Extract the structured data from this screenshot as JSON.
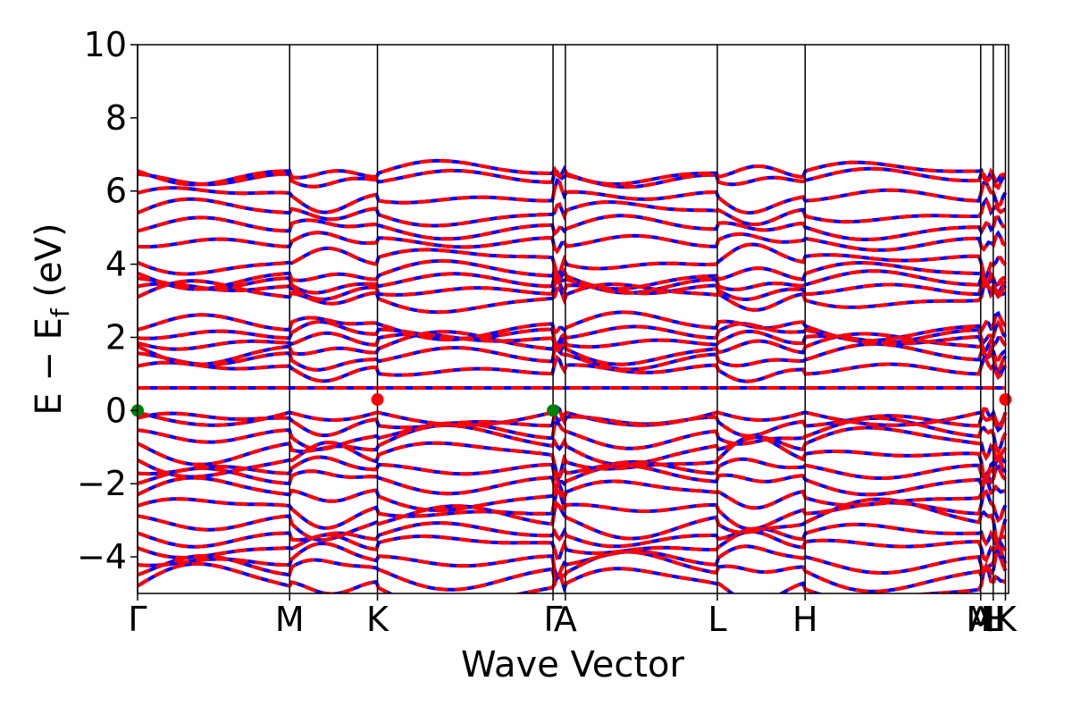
{
  "chart_data": {
    "type": "line",
    "title": "",
    "xlabel": "Wave Vector",
    "ylabel": "E − E",
    "ylabel_subscript": "f",
    "ylabel_unit": " (eV)",
    "ylim": [
      -5,
      10
    ],
    "yticks": [
      {
        "value": -4,
        "label": "−4"
      },
      {
        "value": -2,
        "label": "−2"
      },
      {
        "value": 0,
        "label": "0"
      },
      {
        "value": 2,
        "label": "2"
      },
      {
        "value": 4,
        "label": "4"
      },
      {
        "value": 6,
        "label": "6"
      },
      {
        "value": 8,
        "label": "8"
      },
      {
        "value": 10,
        "label": "10"
      }
    ],
    "xlim": [
      0,
      5.0
    ],
    "kpoints": [
      {
        "x": 0.0,
        "label": "Γ"
      },
      {
        "x": 0.873,
        "label": "M"
      },
      {
        "x": 1.377,
        "label": "K"
      },
      {
        "x": 2.385,
        "label": "Γ"
      },
      {
        "x": 2.456,
        "label": "A"
      },
      {
        "x": 3.328,
        "label": "L"
      },
      {
        "x": 3.832,
        "label": "H"
      },
      {
        "x": 4.84,
        "label": "A"
      },
      {
        "x": 4.84,
        "label": "M"
      },
      {
        "x": 4.912,
        "label": "L"
      },
      {
        "x": 4.912,
        "label": "H"
      },
      {
        "x": 4.982,
        "label": "K"
      }
    ],
    "grid": false,
    "legend": "none",
    "series": [
      {
        "color": "#0000ff",
        "style": "solid",
        "role": "reference bands"
      },
      {
        "color": "#ff0000",
        "style": "dashed",
        "role": "interpolated bands"
      }
    ],
    "band_levels": {
      "conduction": [
        0.62,
        1.12,
        1.45,
        1.7,
        1.9,
        2.1,
        2.3,
        3.1,
        3.3,
        3.5,
        3.7,
        4.1,
        4.6,
        5.0,
        5.4,
        5.85,
        6.35,
        6.5
      ],
      "valence": [
        0.0,
        -0.3,
        -0.65,
        -0.95,
        -1.3,
        -1.6,
        -1.9,
        -2.3,
        -2.7,
        -3.0,
        -3.4,
        -3.7,
        -4.1,
        -4.4,
        -4.8
      ]
    },
    "markers": [
      {
        "x": 0.0,
        "y": 0.0,
        "color": "#008000",
        "kind": "VBM"
      },
      {
        "x": 2.385,
        "y": 0.0,
        "color": "#008000",
        "kind": "VBM"
      },
      {
        "x": 1.377,
        "y": 0.3,
        "color": "#ff0000",
        "kind": "CBM"
      },
      {
        "x": 4.982,
        "y": 0.3,
        "color": "#ff0000",
        "kind": "CBM"
      }
    ]
  }
}
